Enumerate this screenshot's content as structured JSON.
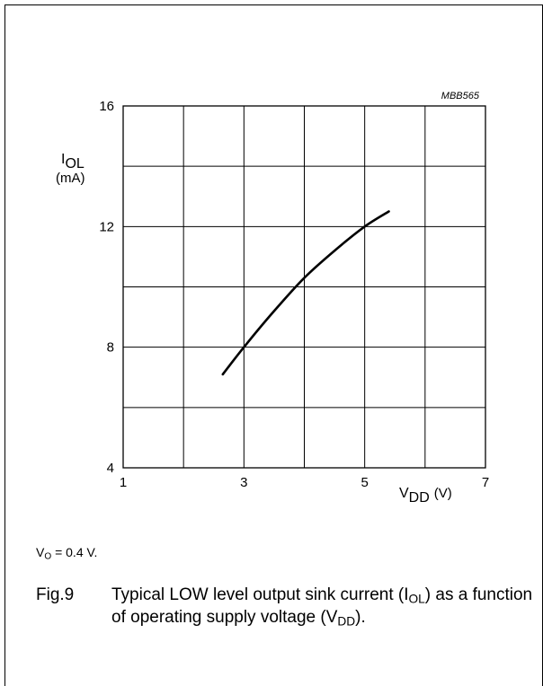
{
  "chart_data": {
    "type": "line",
    "corner_label": "MBB565",
    "ylabel": {
      "main": "I",
      "sub": "OL",
      "unit": "(mA)"
    },
    "xlabel": {
      "main": "V",
      "sub": "DD",
      "unit": "(V)"
    },
    "xlim": [
      1,
      7
    ],
    "ylim": [
      4,
      16
    ],
    "x_ticks": [
      "1",
      "3",
      "5",
      "7"
    ],
    "y_ticks": [
      "4",
      "8",
      "12",
      "16"
    ],
    "x_grid": [
      1,
      2,
      3,
      4,
      5,
      6,
      7
    ],
    "y_grid": [
      4,
      6,
      8,
      10,
      12,
      14,
      16
    ],
    "grid": true,
    "series": [
      {
        "x": [
          2.65,
          3.0,
          3.5,
          4.0,
          4.5,
          5.0,
          5.4
        ],
        "y": [
          7.1,
          8.0,
          9.2,
          10.3,
          11.2,
          12.0,
          12.5
        ]
      }
    ]
  },
  "note": {
    "pre": "V",
    "sub": "O",
    "post": " = 0.4 V."
  },
  "caption": {
    "number": "Fig.9",
    "t1": "Typical LOW level output sink current (I",
    "s1": "OL",
    "t2": ") as a function of operating supply voltage (V",
    "s2": "DD",
    "t3": ")."
  }
}
